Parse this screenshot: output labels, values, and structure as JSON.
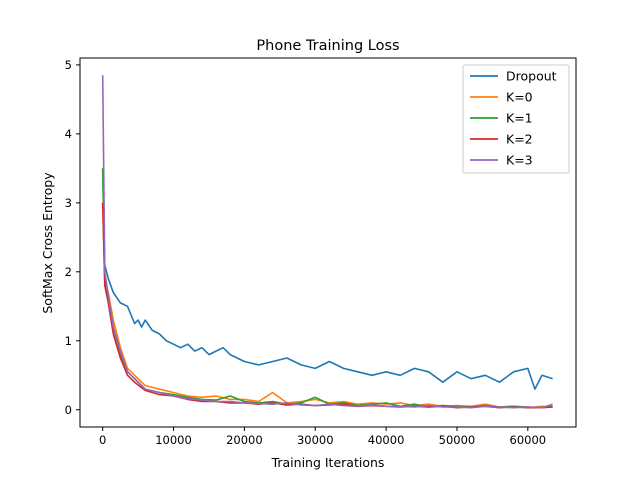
{
  "chart_data": {
    "type": "line",
    "title": "Phone Training Loss",
    "xlabel": "Training Iterations",
    "ylabel": "SoftMax Cross Entropy",
    "xlim": [
      -3200,
      66800
    ],
    "ylim": [
      -0.25,
      5.1
    ],
    "xticks": [
      0,
      10000,
      20000,
      30000,
      40000,
      50000,
      60000
    ],
    "yticks": [
      0,
      1,
      2,
      3,
      4,
      5
    ],
    "grid": false,
    "legend": "top-right",
    "series": [
      {
        "name": "Dropout",
        "color": "#1f77b4",
        "x": [
          0,
          300,
          800,
          1500,
          2500,
          3500,
          4500,
          5000,
          5500,
          6000,
          7000,
          8000,
          9000,
          10000,
          11000,
          12000,
          13000,
          14000,
          15000,
          16000,
          17000,
          18000,
          20000,
          22000,
          24000,
          26000,
          28000,
          30000,
          32000,
          34000,
          36000,
          38000,
          40000,
          42000,
          44000,
          46000,
          48000,
          50000,
          52000,
          54000,
          56000,
          58000,
          60000,
          61000,
          62000,
          63500
        ],
        "y": [
          3.5,
          2.1,
          1.9,
          1.7,
          1.55,
          1.5,
          1.25,
          1.3,
          1.2,
          1.3,
          1.15,
          1.1,
          1.0,
          0.95,
          0.9,
          0.95,
          0.85,
          0.9,
          0.8,
          0.85,
          0.9,
          0.8,
          0.7,
          0.65,
          0.7,
          0.75,
          0.65,
          0.6,
          0.7,
          0.6,
          0.55,
          0.5,
          0.55,
          0.5,
          0.6,
          0.55,
          0.4,
          0.55,
          0.45,
          0.5,
          0.4,
          0.55,
          0.6,
          0.3,
          0.5,
          0.45
        ]
      },
      {
        "name": "K=0",
        "color": "#ff7f0e",
        "x": [
          0,
          300,
          800,
          1500,
          2500,
          3500,
          4500,
          6000,
          8000,
          10000,
          12000,
          14000,
          16000,
          18000,
          20000,
          22000,
          24000,
          26000,
          28000,
          30000,
          32000,
          34000,
          36000,
          38000,
          40000,
          42000,
          44000,
          46000,
          48000,
          50000,
          52000,
          54000,
          56000,
          58000,
          60000,
          62000,
          63500
        ],
        "y": [
          3.0,
          1.85,
          1.7,
          1.3,
          0.9,
          0.6,
          0.5,
          0.35,
          0.3,
          0.25,
          0.2,
          0.18,
          0.2,
          0.15,
          0.15,
          0.12,
          0.25,
          0.1,
          0.12,
          0.15,
          0.1,
          0.12,
          0.08,
          0.1,
          0.08,
          0.1,
          0.06,
          0.08,
          0.05,
          0.06,
          0.05,
          0.08,
          0.04,
          0.05,
          0.03,
          0.05,
          0.04
        ]
      },
      {
        "name": "K=1",
        "color": "#2ca02c",
        "x": [
          0,
          300,
          800,
          1500,
          2500,
          3500,
          4500,
          6000,
          8000,
          10000,
          12000,
          14000,
          16000,
          18000,
          20000,
          22000,
          24000,
          26000,
          28000,
          30000,
          32000,
          34000,
          36000,
          38000,
          40000,
          42000,
          44000,
          46000,
          48000,
          50000,
          52000,
          54000,
          56000,
          58000,
          60000,
          62000,
          63500
        ],
        "y": [
          3.5,
          1.9,
          1.6,
          1.2,
          0.8,
          0.55,
          0.45,
          0.3,
          0.25,
          0.22,
          0.18,
          0.15,
          0.14,
          0.2,
          0.12,
          0.1,
          0.12,
          0.08,
          0.1,
          0.18,
          0.08,
          0.1,
          0.06,
          0.08,
          0.1,
          0.05,
          0.08,
          0.04,
          0.06,
          0.05,
          0.04,
          0.06,
          0.04,
          0.05,
          0.04,
          0.03,
          0.05
        ]
      },
      {
        "name": "K=2",
        "color": "#d62728",
        "x": [
          0,
          300,
          800,
          1500,
          2500,
          3500,
          4500,
          6000,
          8000,
          10000,
          12000,
          14000,
          16000,
          18000,
          20000,
          22000,
          24000,
          26000,
          28000,
          30000,
          32000,
          34000,
          36000,
          38000,
          40000,
          42000,
          44000,
          46000,
          48000,
          50000,
          52000,
          54000,
          56000,
          58000,
          60000,
          62000,
          63500
        ],
        "y": [
          3.0,
          1.8,
          1.55,
          1.1,
          0.75,
          0.5,
          0.4,
          0.28,
          0.22,
          0.2,
          0.15,
          0.12,
          0.12,
          0.1,
          0.1,
          0.08,
          0.1,
          0.07,
          0.08,
          0.06,
          0.07,
          0.08,
          0.05,
          0.06,
          0.05,
          0.04,
          0.05,
          0.04,
          0.05,
          0.03,
          0.04,
          0.05,
          0.03,
          0.04,
          0.03,
          0.03,
          0.04
        ]
      },
      {
        "name": "K=3",
        "color": "#9467bd",
        "x": [
          0,
          300,
          800,
          1500,
          2500,
          3500,
          4500,
          6000,
          8000,
          10000,
          12000,
          14000,
          16000,
          18000,
          20000,
          22000,
          24000,
          26000,
          28000,
          30000,
          32000,
          34000,
          36000,
          38000,
          40000,
          42000,
          44000,
          46000,
          48000,
          50000,
          52000,
          54000,
          56000,
          58000,
          60000,
          62000,
          63500
        ],
        "y": [
          4.85,
          2.0,
          1.65,
          1.2,
          0.85,
          0.55,
          0.45,
          0.3,
          0.25,
          0.2,
          0.16,
          0.14,
          0.12,
          0.12,
          0.1,
          0.09,
          0.08,
          0.1,
          0.07,
          0.06,
          0.08,
          0.06,
          0.05,
          0.07,
          0.05,
          0.05,
          0.04,
          0.06,
          0.04,
          0.04,
          0.03,
          0.05,
          0.04,
          0.03,
          0.04,
          0.03,
          0.08
        ]
      }
    ]
  }
}
